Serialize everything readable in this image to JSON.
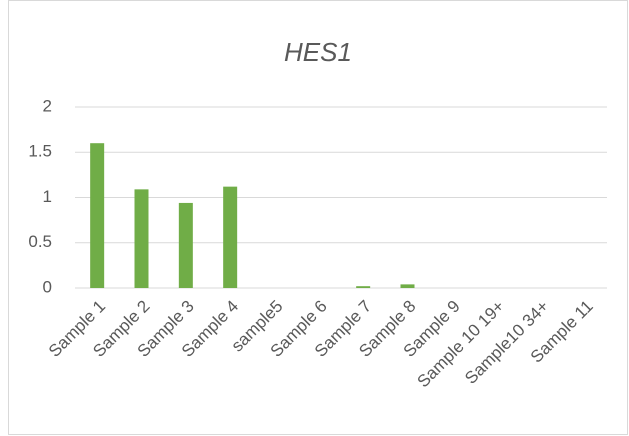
{
  "chart_data": {
    "type": "bar",
    "title": "HES1",
    "categories": [
      "Sample 1",
      "Sample 2",
      "Sample 3",
      "Sample 4",
      "sample5",
      "Sample 6",
      "Sample 7",
      "Sample 8",
      "Sample 9",
      "Sample 10 19+",
      "Sample10 34+",
      "Sample 11"
    ],
    "values": [
      1.6,
      1.09,
      0.94,
      1.12,
      0,
      0,
      0.02,
      0.04,
      0,
      0,
      0,
      0
    ],
    "color": "#70ad47",
    "ylim": [
      0,
      2
    ],
    "yticks": [
      0,
      0.5,
      1,
      1.5,
      2
    ],
    "grid": true
  }
}
